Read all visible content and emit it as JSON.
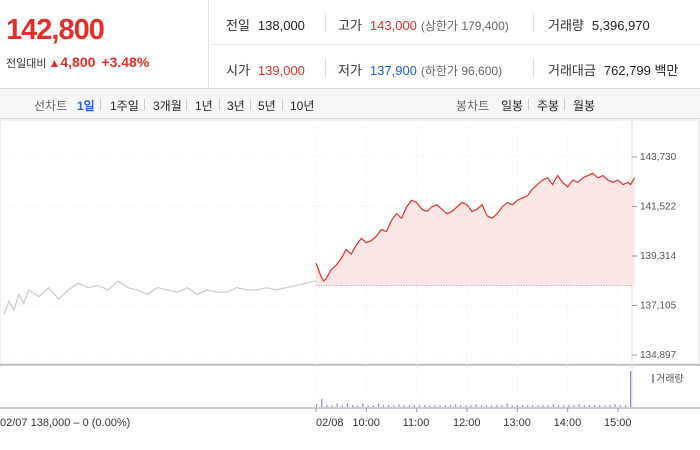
{
  "quote": {
    "price": "142,800",
    "change_label": "전일대비",
    "change_symbol": "▲",
    "change_amount": "4,800",
    "change_percent": "+3.48%",
    "prev_close_label": "전일",
    "prev_close": "138,000",
    "open_label": "시가",
    "open": "139,000",
    "high_label": "고가",
    "high": "143,000",
    "upper_limit": "(상한가 179,400)",
    "low_label": "저가",
    "low": "137,900",
    "lower_limit": "(하한가 96,600)",
    "volume_label": "거래량",
    "volume": "5,396,970",
    "trade_value_label": "거래대금",
    "trade_value": "762,799 백만"
  },
  "tabs": {
    "line_label": "선차트",
    "line_periods": [
      "1일",
      "1주일",
      "3개월",
      "1년",
      "3년",
      "5년",
      "10년"
    ],
    "active_period": "1일",
    "candle_label": "봉차트",
    "candle_periods": [
      "일봉",
      "주봉",
      "월봉"
    ]
  },
  "colors": {
    "up": "#e0302c",
    "down": "#1e62c8",
    "prev_day_line": "#c9c9c9",
    "fill": "#fce6e6",
    "volume": "#8a8fc0"
  },
  "chart_data": {
    "type": "line",
    "title": "",
    "y_ticks": [
      143730,
      141522,
      139314,
      137105,
      134897
    ],
    "y_tick_labels": [
      "143,730",
      "141,522",
      "139,314",
      "137,105",
      "134,897"
    ],
    "ylim": [
      134897,
      143730
    ],
    "x_tick_labels": [
      "02/08",
      "10:00",
      "11:00",
      "12:00",
      "13:00",
      "14:00",
      "15:00"
    ],
    "x_ticks_hours": [
      9,
      10,
      11,
      12,
      13,
      14,
      15
    ],
    "base_price": 138000,
    "grid": true,
    "volume_legend": "거래량",
    "footer_label": "02/07 138,000 – 0 (0.00%)",
    "series": [
      {
        "x_hours": [
          9.0,
          9.05,
          9.1,
          9.15,
          9.2,
          9.3,
          9.4,
          9.5,
          9.6,
          9.7,
          9.8,
          9.9,
          10.0,
          10.1,
          10.2,
          10.3,
          10.4,
          10.5,
          10.6,
          10.7,
          10.8,
          10.9,
          11.0,
          11.1,
          11.2,
          11.3,
          11.4,
          11.5,
          11.6,
          11.7,
          11.8,
          11.9,
          12.0,
          12.1,
          12.2,
          12.3,
          12.4,
          12.5,
          12.6,
          12.7,
          12.8,
          12.9,
          13.0,
          13.1,
          13.2,
          13.3,
          13.4,
          13.5,
          13.6,
          13.7,
          13.8,
          13.9,
          14.0,
          14.1,
          14.2,
          14.3,
          14.4,
          14.5,
          14.6,
          14.7,
          14.8,
          14.9,
          15.0,
          15.1,
          15.2,
          15.25,
          15.33
        ],
        "values": [
          139000,
          138700,
          138400,
          138200,
          138300,
          138700,
          138900,
          139200,
          139600,
          139400,
          139800,
          140100,
          139900,
          140000,
          140200,
          140500,
          140400,
          140900,
          141200,
          141000,
          141500,
          141800,
          141700,
          141400,
          141300,
          141500,
          141600,
          141400,
          141200,
          141300,
          141500,
          141700,
          141600,
          141300,
          141400,
          141600,
          141100,
          141000,
          141200,
          141500,
          141700,
          141600,
          141800,
          141900,
          142000,
          142300,
          142500,
          142700,
          142800,
          142500,
          142900,
          142600,
          142400,
          142700,
          142600,
          142800,
          142900,
          143000,
          142800,
          142900,
          142700,
          142600,
          142700,
          142500,
          142600,
          142500,
          142800
        ]
      },
      {
        "x_hours": [
          -6.3,
          -6.2,
          -6.1,
          -6.0,
          -5.9,
          -5.8,
          -5.6,
          -5.4,
          -5.2,
          -5.0,
          -4.8,
          -4.6,
          -4.4,
          -4.2,
          -4.0,
          -3.8,
          -3.6,
          -3.4,
          -3.2,
          -3.0,
          -2.8,
          -2.6,
          -2.4,
          -2.2,
          -2.0,
          -1.8,
          -1.6,
          -1.4,
          -1.2,
          -1.0,
          -0.8,
          -0.6,
          -0.4,
          -0.2,
          0.0
        ],
        "values": [
          136700,
          137300,
          136900,
          137600,
          137200,
          137800,
          137500,
          137900,
          137400,
          137800,
          138100,
          137900,
          138000,
          137800,
          138200,
          137900,
          137800,
          137600,
          137900,
          137800,
          137700,
          137900,
          137600,
          137800,
          137700,
          137700,
          137900,
          137800,
          137800,
          137900,
          137800,
          137900,
          138000,
          138100,
          138200
        ]
      }
    ],
    "volume": [
      3,
      9,
      2,
      2,
      4,
      2,
      4,
      2,
      2,
      4,
      2,
      2,
      4,
      2,
      2,
      2,
      3,
      2,
      2,
      2,
      2,
      2,
      2,
      2,
      2,
      2,
      2,
      3,
      2,
      2,
      2,
      3,
      2,
      2,
      2,
      2,
      2,
      4,
      2,
      2,
      2,
      2,
      2,
      2,
      2,
      2,
      3,
      2,
      2,
      2,
      2,
      3,
      2,
      2,
      2,
      2,
      2,
      2,
      3,
      2,
      2,
      40
    ]
  }
}
